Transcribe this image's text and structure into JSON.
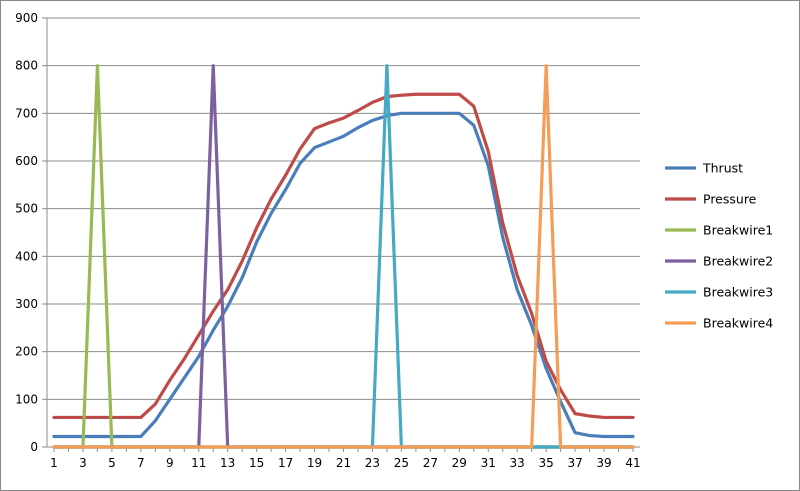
{
  "chart_data": {
    "type": "line",
    "title": "",
    "xlabel": "",
    "ylabel": "",
    "x": [
      1,
      2,
      3,
      4,
      5,
      6,
      7,
      8,
      9,
      10,
      11,
      12,
      13,
      14,
      15,
      16,
      17,
      18,
      19,
      20,
      21,
      22,
      23,
      24,
      25,
      26,
      27,
      28,
      29,
      30,
      31,
      32,
      33,
      34,
      35,
      36,
      37,
      38,
      39,
      40,
      41
    ],
    "xticks": [
      "1",
      "3",
      "5",
      "7",
      "9",
      "11",
      "13",
      "15",
      "17",
      "19",
      "21",
      "23",
      "25",
      "27",
      "29",
      "31",
      "33",
      "35",
      "37",
      "39",
      "41"
    ],
    "yticks": [
      "0",
      "100",
      "200",
      "300",
      "400",
      "500",
      "600",
      "700",
      "800",
      "900"
    ],
    "ylim": [
      0,
      900
    ],
    "grid": "horizontal",
    "legend_position": "right",
    "series": [
      {
        "name": "Thrust",
        "color": "#4a7ebb",
        "values": [
          22,
          22,
          22,
          22,
          22,
          22,
          22,
          55,
          100,
          145,
          190,
          245,
          295,
          355,
          430,
          490,
          540,
          595,
          628,
          640,
          652,
          670,
          685,
          695,
          700,
          700,
          700,
          700,
          700,
          675,
          590,
          440,
          330,
          255,
          165,
          95,
          30,
          24,
          22,
          22,
          22
        ]
      },
      {
        "name": "Pressure",
        "color": "#be4b48",
        "values": [
          62,
          62,
          62,
          62,
          62,
          62,
          62,
          90,
          140,
          185,
          235,
          285,
          330,
          390,
          460,
          520,
          570,
          625,
          668,
          680,
          690,
          706,
          723,
          735,
          738,
          740,
          740,
          740,
          740,
          715,
          620,
          470,
          360,
          280,
          180,
          120,
          70,
          65,
          62,
          62,
          62
        ]
      },
      {
        "name": "Breakwire1",
        "color": "#98b954",
        "values": [
          0,
          0,
          0,
          800,
          0,
          0,
          0,
          0,
          0,
          0,
          0,
          0,
          0,
          0,
          0,
          0,
          0,
          0,
          0,
          0,
          0,
          0,
          0,
          0,
          0,
          0,
          0,
          0,
          0,
          0,
          0,
          0,
          0,
          0,
          0,
          0,
          0,
          0,
          0,
          0,
          0
        ]
      },
      {
        "name": "Breakwire2",
        "color": "#7d60a0",
        "values": [
          0,
          0,
          0,
          0,
          0,
          0,
          0,
          0,
          0,
          0,
          0,
          800,
          0,
          0,
          0,
          0,
          0,
          0,
          0,
          0,
          0,
          0,
          0,
          0,
          0,
          0,
          0,
          0,
          0,
          0,
          0,
          0,
          0,
          0,
          0,
          0,
          0,
          0,
          0,
          0,
          0
        ]
      },
      {
        "name": "Breakwire3",
        "color": "#46aac5",
        "values": [
          0,
          0,
          0,
          0,
          0,
          0,
          0,
          0,
          0,
          0,
          0,
          0,
          0,
          0,
          0,
          0,
          0,
          0,
          0,
          0,
          0,
          0,
          0,
          800,
          0,
          0,
          0,
          0,
          0,
          0,
          0,
          0,
          0,
          0,
          0,
          0,
          0,
          0,
          0,
          0,
          0
        ]
      },
      {
        "name": "Breakwire4",
        "color": "#f59d56",
        "values": [
          0,
          0,
          0,
          0,
          0,
          0,
          0,
          0,
          0,
          0,
          0,
          0,
          0,
          0,
          0,
          0,
          0,
          0,
          0,
          0,
          0,
          0,
          0,
          0,
          0,
          0,
          0,
          0,
          0,
          0,
          0,
          0,
          0,
          0,
          800,
          0,
          0,
          0,
          0,
          0,
          0
        ]
      }
    ]
  }
}
